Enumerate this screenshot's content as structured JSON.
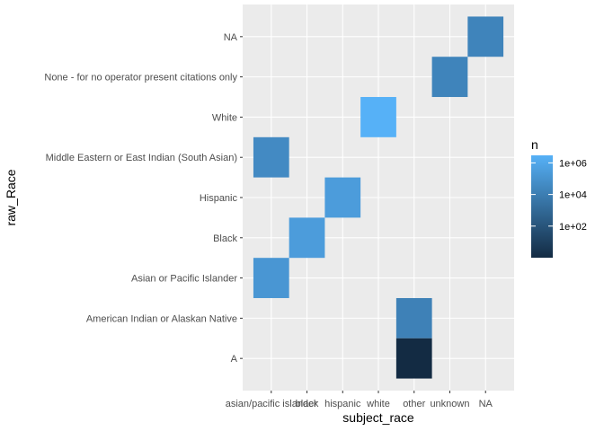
{
  "chart_data": {
    "type": "heatmap",
    "title": "",
    "xlabel": "subject_race",
    "ylabel": "raw_Race",
    "x_categories": [
      "asian/pacific islander",
      "black",
      "hispanic",
      "white",
      "other",
      "unknown",
      "NA"
    ],
    "y_categories": [
      "A",
      "American Indian or Alaskan Native",
      "Asian or Pacific Islander",
      "Black",
      "Hispanic",
      "Middle Eastern or East Indian (South Asian)",
      "White",
      "None - for no operator present citations only",
      "NA"
    ],
    "cells": [
      {
        "x": "NA",
        "y": "NA",
        "n": 20000
      },
      {
        "x": "white",
        "y": "White",
        "n": 3000000
      },
      {
        "x": "unknown",
        "y": "None - for no operator present citations only",
        "n": 20000
      },
      {
        "x": "asian/pacific islander",
        "y": "Middle Eastern or East Indian (South Asian)",
        "n": 40000
      },
      {
        "x": "hispanic",
        "y": "Hispanic",
        "n": 300000
      },
      {
        "x": "black",
        "y": "Black",
        "n": 300000
      },
      {
        "x": "asian/pacific islander",
        "y": "Asian or Pacific Islander",
        "n": 150000
      },
      {
        "x": "other",
        "y": "American Indian or Alaskan Native",
        "n": 15000
      },
      {
        "x": "other",
        "y": "A",
        "n": 1
      }
    ],
    "legend": {
      "title": "n",
      "scale": "log10",
      "range": [
        1,
        3000000
      ],
      "breaks": [
        100,
        10000,
        1000000
      ],
      "labels": [
        "1e+02",
        "1e+04",
        "1e+06"
      ],
      "low_color": "#132B43",
      "high_color": "#56B1F7",
      "position": "right"
    },
    "panel_background": "#EBEBEB",
    "grid_color": "#FFFFFF"
  }
}
